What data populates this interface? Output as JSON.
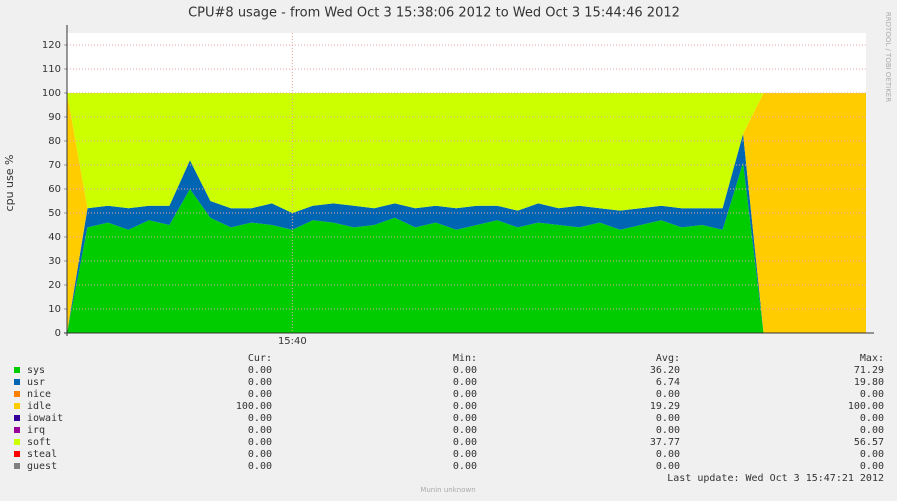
{
  "chart_data": {
    "type": "stacked-area",
    "title": "CPU#8 usage - from Wed Oct  3 15:38:06 2012 to Wed Oct  3 15:44:46 2012",
    "ylabel": "cpu use %",
    "side_text": "RRDTOOL / TOBI OETIKER",
    "footer": "Munin unknown",
    "last_update": "Last update:  Wed Oct  3 15:47:21 2012",
    "stat_headers": [
      "Cur:",
      "Min:",
      "Avg:",
      "Max:"
    ],
    "categories": [
      null,
      null,
      null,
      null,
      null,
      null,
      null,
      null,
      null,
      null,
      null,
      "15:40",
      null,
      null,
      null,
      null,
      null,
      null,
      null,
      null,
      null,
      null,
      null,
      null,
      null,
      null,
      null,
      null,
      null,
      null,
      null,
      null,
      null,
      null,
      null,
      null,
      null,
      null,
      null,
      null
    ],
    "ylim": [
      0,
      125
    ],
    "yticks": [
      0,
      10,
      20,
      30,
      40,
      50,
      60,
      70,
      80,
      90,
      100,
      110,
      120
    ],
    "grid": true,
    "series": [
      {
        "name": "sys",
        "color": "#00cc00",
        "stats": [
          "0.00",
          "0.00",
          "36.20",
          "71.29"
        ],
        "values": [
          0,
          44,
          46,
          43,
          47,
          45,
          60,
          48,
          44,
          46,
          45,
          43,
          47,
          46,
          44,
          45,
          48,
          44,
          46,
          43,
          45,
          47,
          44,
          46,
          45,
          44,
          46,
          43,
          45,
          47,
          44,
          45,
          43,
          71,
          0,
          0,
          0,
          0,
          0,
          0
        ]
      },
      {
        "name": "usr",
        "color": "#0066b3",
        "stats": [
          "0.00",
          "0.00",
          "6.74",
          "19.80"
        ],
        "values": [
          0,
          8,
          7,
          9,
          6,
          8,
          12,
          7,
          8,
          6,
          9,
          7,
          6,
          8,
          9,
          7,
          6,
          8,
          7,
          9,
          8,
          6,
          7,
          8,
          7,
          9,
          6,
          8,
          7,
          6,
          8,
          7,
          9,
          12,
          0,
          0,
          0,
          0,
          0,
          0
        ]
      },
      {
        "name": "nice",
        "color": "#ff8000",
        "stats": [
          "0.00",
          "0.00",
          "0.00",
          "0.00"
        ],
        "values": [
          0,
          0,
          0,
          0,
          0,
          0,
          0,
          0,
          0,
          0,
          0,
          0,
          0,
          0,
          0,
          0,
          0,
          0,
          0,
          0,
          0,
          0,
          0,
          0,
          0,
          0,
          0,
          0,
          0,
          0,
          0,
          0,
          0,
          0,
          0,
          0,
          0,
          0,
          0,
          0
        ]
      },
      {
        "name": "idle",
        "color": "#ffcc00",
        "stats": [
          "100.00",
          "0.00",
          "19.29",
          "100.00"
        ],
        "values": [
          100,
          0,
          0,
          0,
          0,
          0,
          0,
          0,
          0,
          0,
          0,
          0,
          0,
          0,
          0,
          0,
          0,
          0,
          0,
          0,
          0,
          0,
          0,
          0,
          0,
          0,
          0,
          0,
          0,
          0,
          0,
          0,
          0,
          0,
          100,
          100,
          100,
          100,
          100,
          100
        ]
      },
      {
        "name": "iowait",
        "color": "#330099",
        "stats": [
          "0.00",
          "0.00",
          "0.00",
          "0.00"
        ],
        "values": [
          0,
          0,
          0,
          0,
          0,
          0,
          0,
          0,
          0,
          0,
          0,
          0,
          0,
          0,
          0,
          0,
          0,
          0,
          0,
          0,
          0,
          0,
          0,
          0,
          0,
          0,
          0,
          0,
          0,
          0,
          0,
          0,
          0,
          0,
          0,
          0,
          0,
          0,
          0,
          0
        ]
      },
      {
        "name": "irq",
        "color": "#990099",
        "stats": [
          "0.00",
          "0.00",
          "0.00",
          "0.00"
        ],
        "values": [
          0,
          0,
          0,
          0,
          0,
          0,
          0,
          0,
          0,
          0,
          0,
          0,
          0,
          0,
          0,
          0,
          0,
          0,
          0,
          0,
          0,
          0,
          0,
          0,
          0,
          0,
          0,
          0,
          0,
          0,
          0,
          0,
          0,
          0,
          0,
          0,
          0,
          0,
          0,
          0
        ]
      },
      {
        "name": "soft",
        "color": "#ccff00",
        "stats": [
          "0.00",
          "0.00",
          "37.77",
          "56.57"
        ],
        "values": [
          0,
          48,
          47,
          48,
          47,
          47,
          28,
          45,
          48,
          48,
          46,
          50,
          47,
          46,
          47,
          48,
          46,
          48,
          47,
          48,
          47,
          47,
          49,
          46,
          48,
          47,
          48,
          49,
          48,
          47,
          48,
          48,
          48,
          17,
          0,
          0,
          0,
          0,
          0,
          0
        ]
      },
      {
        "name": "steal",
        "color": "#ff0000",
        "stats": [
          "0.00",
          "0.00",
          "0.00",
          "0.00"
        ],
        "values": [
          0,
          0,
          0,
          0,
          0,
          0,
          0,
          0,
          0,
          0,
          0,
          0,
          0,
          0,
          0,
          0,
          0,
          0,
          0,
          0,
          0,
          0,
          0,
          0,
          0,
          0,
          0,
          0,
          0,
          0,
          0,
          0,
          0,
          0,
          0,
          0,
          0,
          0,
          0,
          0
        ]
      },
      {
        "name": "guest",
        "color": "#808080",
        "stats": [
          "0.00",
          "0.00",
          "0.00",
          "0.00"
        ],
        "values": [
          0,
          0,
          0,
          0,
          0,
          0,
          0,
          0,
          0,
          0,
          0,
          0,
          0,
          0,
          0,
          0,
          0,
          0,
          0,
          0,
          0,
          0,
          0,
          0,
          0,
          0,
          0,
          0,
          0,
          0,
          0,
          0,
          0,
          0,
          0,
          0,
          0,
          0,
          0,
          0
        ]
      }
    ]
  }
}
